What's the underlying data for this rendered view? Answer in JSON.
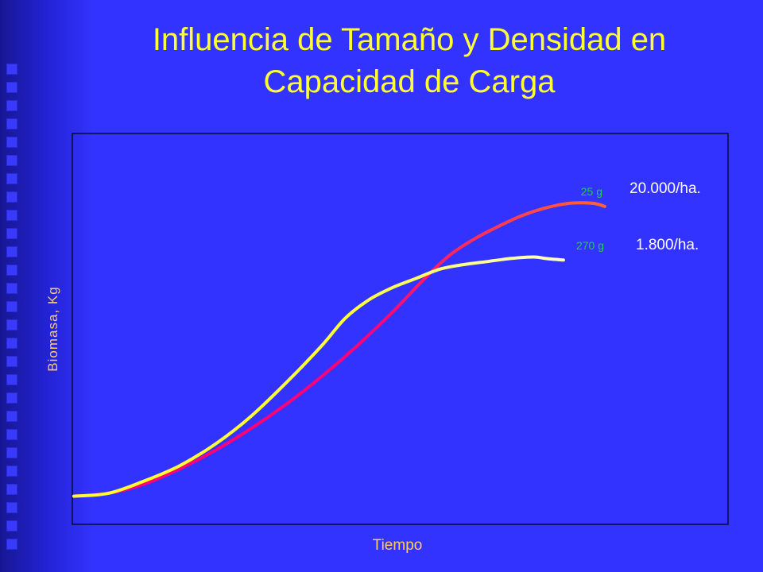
{
  "slide": {
    "title": "Influencia de Tamaño y Densidad en Capacidad de Carga",
    "background_color": "#3333ff",
    "title_color": "#ffff33"
  },
  "chart_data": {
    "type": "line",
    "title": "Influencia de Tamaño y Densidad en Capacidad de Carga",
    "xlabel": "Tiempo",
    "ylabel": "Biomasa, Kg",
    "xlim": [
      0,
      100
    ],
    "ylim": [
      0,
      100
    ],
    "grid": false,
    "axis_ticks": false,
    "series": [
      {
        "name": "25 g",
        "annotation": "20.000/ha.",
        "color_start": "#ff0077",
        "color_end": "#ff6633",
        "x": [
          0,
          6,
          12,
          18,
          24,
          30,
          36,
          42,
          48,
          54,
          60,
          64,
          68,
          72,
          76,
          80,
          84,
          88,
          90
        ],
        "y": [
          4,
          5,
          8,
          13,
          19,
          26,
          34,
          43,
          53,
          64,
          76,
          83,
          88,
          92,
          95.5,
          98,
          99.5,
          99.5,
          98.5
        ]
      },
      {
        "name": "270 g",
        "annotation": "1.800/ha.",
        "color_start": "#ffff33",
        "color_end": "#ffffcc",
        "x": [
          0,
          6,
          12,
          18,
          24,
          30,
          36,
          42,
          46,
          50,
          54,
          58,
          62,
          66,
          70,
          74,
          78,
          80,
          83
        ],
        "y": [
          4,
          5,
          9,
          14,
          21,
          30,
          41,
          53,
          62,
          68,
          72,
          75,
          78,
          79.5,
          80.5,
          81.5,
          82,
          81.5,
          81
        ]
      }
    ]
  }
}
